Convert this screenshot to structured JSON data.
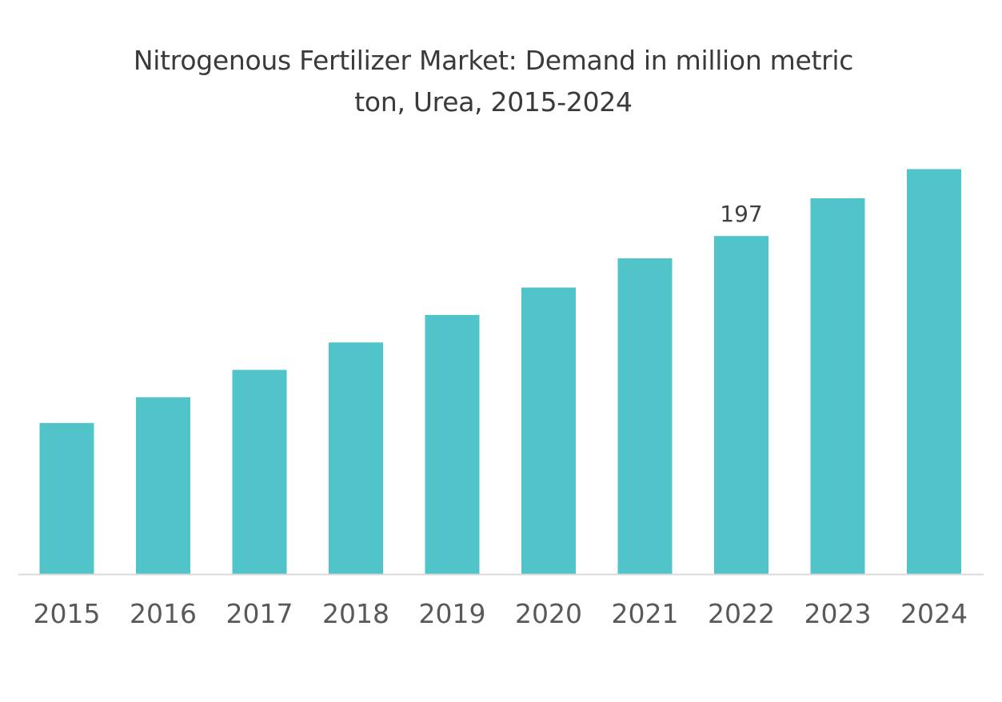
{
  "chart_data": {
    "type": "bar",
    "title_lines": [
      "Nitrogenous Fertilizer Market: Demand in million metric",
      "ton, Urea, 2015-2024"
    ],
    "categories": [
      "2015",
      "2016",
      "2017",
      "2018",
      "2019",
      "2020",
      "2021",
      "2022",
      "2023",
      "2024"
    ],
    "values": [
      88,
      103,
      119,
      135,
      151,
      167,
      184,
      197,
      219,
      236
    ],
    "data_labels": [
      null,
      null,
      null,
      null,
      null,
      null,
      null,
      "197",
      null,
      null
    ],
    "ylim": [
      0,
      260
    ],
    "grid": false,
    "legend": "none",
    "bar_color": "#50C4C8",
    "axis_color": "#d9d9d9"
  }
}
